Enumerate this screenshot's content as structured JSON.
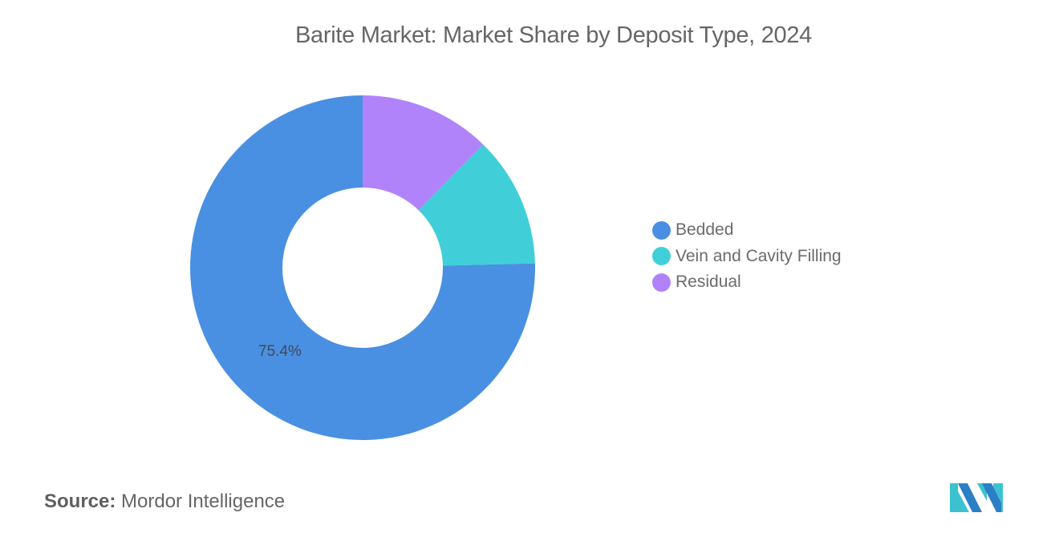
{
  "chart_data": {
    "type": "pie",
    "variant": "donut",
    "title": "Barite Market: Market Share by Deposit Type, 2024",
    "categories": [
      "Bedded",
      "Vein and Cavity Filling",
      "Residual"
    ],
    "values": [
      75.4,
      12.3,
      12.3
    ],
    "unit": "%",
    "colors": [
      "#4a90e2",
      "#40cfd8",
      "#b083fa"
    ],
    "data_labels": [
      {
        "category": "Bedded",
        "text": "75.4%"
      }
    ],
    "legend_position": "right",
    "start_angle": "12 o'clock, counter-clockwise order: Bedded left/bottom, Vein right, Residual top-right",
    "source": "Mordor Intelligence"
  },
  "header": {
    "title": "Barite Market: Market Share by Deposit Type, 2024"
  },
  "legend": {
    "items": [
      {
        "label": "Bedded",
        "color": "#4a90e2"
      },
      {
        "label": "Vein and Cavity Filling",
        "color": "#40cfd8"
      },
      {
        "label": "Residual",
        "color": "#b083fa"
      }
    ]
  },
  "labels": {
    "bedded_value": "75.4%"
  },
  "footer": {
    "source_key": "Source:",
    "source_value": "Mordor Intelligence",
    "logo": "mordor-intelligence-logo-icon"
  }
}
